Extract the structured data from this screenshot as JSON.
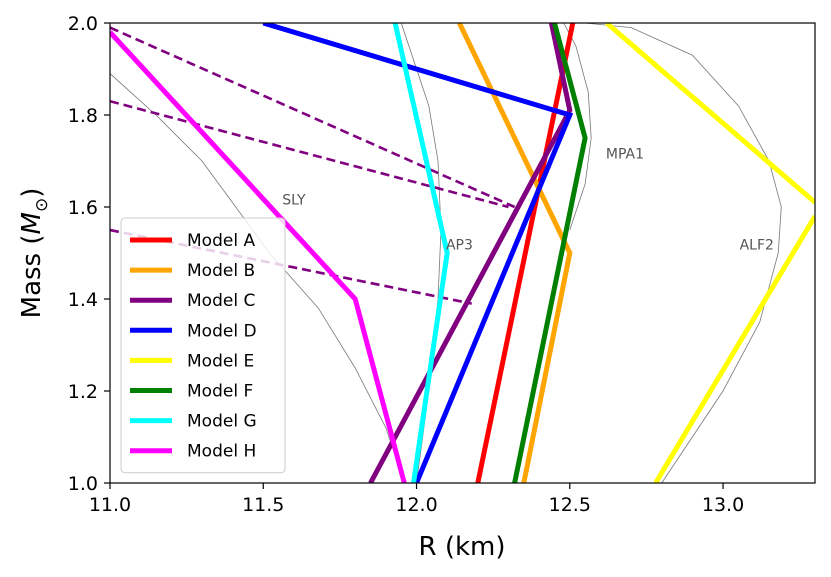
{
  "chart_data": {
    "type": "line",
    "xlabel": "R (km)",
    "ylabel_main": "Mass (",
    "ylabel_symbol": "M",
    "ylabel_sub": "⊙",
    "ylabel_close": ")",
    "xlim": [
      11.0,
      13.3
    ],
    "ylim": [
      1.0,
      2.0
    ],
    "xticks": [
      11.0,
      11.5,
      12.0,
      12.5,
      13.0
    ],
    "xtick_labels": [
      "11.0",
      "11.5",
      "12.0",
      "12.5",
      "13.0"
    ],
    "yticks": [
      1.0,
      1.2,
      1.4,
      1.6,
      1.8,
      2.0
    ],
    "ytick_labels": [
      "1.0",
      "1.2",
      "1.4",
      "1.6",
      "1.8",
      "2.0"
    ],
    "legend_position": "lower-left",
    "series": [
      {
        "name": "Model A",
        "color": "#ff0000",
        "x": [
          12.2,
          12.51
        ],
        "y": [
          1.0,
          2.0
        ]
      },
      {
        "name": "Model B",
        "color": "#ffa500",
        "x": [
          12.35,
          12.5,
          12.14
        ],
        "y": [
          1.0,
          1.5,
          2.0
        ]
      },
      {
        "name": "Model C",
        "color": "#800080",
        "x": [
          11.85,
          12.5,
          12.44
        ],
        "y": [
          1.0,
          1.81,
          2.0
        ]
      },
      {
        "name": "Model D",
        "color": "#0000ff",
        "x": [
          12.0,
          12.5,
          11.5
        ],
        "y": [
          1.0,
          1.8,
          2.0
        ]
      },
      {
        "name": "Model E",
        "color": "#ffff00",
        "segments": [
          {
            "x": [
              12.78,
              13.3
            ],
            "y": [
              1.0,
              1.58
            ]
          },
          {
            "x": [
              12.62,
              13.3
            ],
            "y": [
              2.0,
              1.61
            ]
          }
        ]
      },
      {
        "name": "Model F",
        "color": "#008000",
        "x": [
          12.32,
          12.55,
          12.45
        ],
        "y": [
          1.0,
          1.75,
          2.0
        ]
      },
      {
        "name": "Model G",
        "color": "#00ffff",
        "x": [
          11.99,
          12.1,
          11.93
        ],
        "y": [
          1.0,
          1.5,
          2.0
        ]
      },
      {
        "name": "Model H",
        "color": "#ff00ff",
        "x": [
          11.96,
          11.8,
          11.0
        ],
        "y": [
          1.0,
          1.4,
          1.98
        ]
      }
    ],
    "eos_curves": [
      {
        "name": "SLY",
        "label_x": 11.6,
        "label_y": 1.605,
        "x": [
          11.96,
          11.9,
          11.8,
          11.68,
          11.52,
          11.3,
          11.15,
          11.0
        ],
        "y": [
          1.0,
          1.12,
          1.25,
          1.38,
          1.5,
          1.7,
          1.8,
          1.89
        ]
      },
      {
        "name": "AP3",
        "label_x": 12.14,
        "label_y": 1.508,
        "x": [
          12.0,
          12.04,
          12.07,
          12.08,
          12.07,
          12.04,
          11.99,
          11.95
        ],
        "y": [
          1.0,
          1.2,
          1.4,
          1.55,
          1.7,
          1.82,
          1.92,
          2.0
        ]
      },
      {
        "name": "MPA1",
        "label_x": 12.68,
        "label_y": 1.705,
        "x": [
          12.5,
          12.55,
          12.57,
          12.56,
          12.52,
          12.48
        ],
        "y": [
          1.55,
          1.65,
          1.75,
          1.85,
          1.95,
          2.0
        ]
      },
      {
        "name": "ALF2",
        "label_x": 13.11,
        "label_y": 1.508,
        "x": [
          12.8,
          13.0,
          13.12,
          13.18,
          13.19,
          13.15,
          13.05,
          12.9,
          12.7,
          12.55
        ],
        "y": [
          1.0,
          1.2,
          1.35,
          1.5,
          1.6,
          1.7,
          1.82,
          1.93,
          1.99,
          2.0
        ]
      }
    ],
    "dashed_lines": [
      {
        "color": "#800080",
        "x": [
          11.0,
          12.32
        ],
        "y": [
          1.99,
          1.6
        ]
      },
      {
        "color": "#800080",
        "x": [
          11.0,
          12.3
        ],
        "y": [
          1.83,
          1.6
        ]
      },
      {
        "color": "#800080",
        "x": [
          11.0,
          12.18
        ],
        "y": [
          1.55,
          1.39
        ]
      }
    ]
  }
}
